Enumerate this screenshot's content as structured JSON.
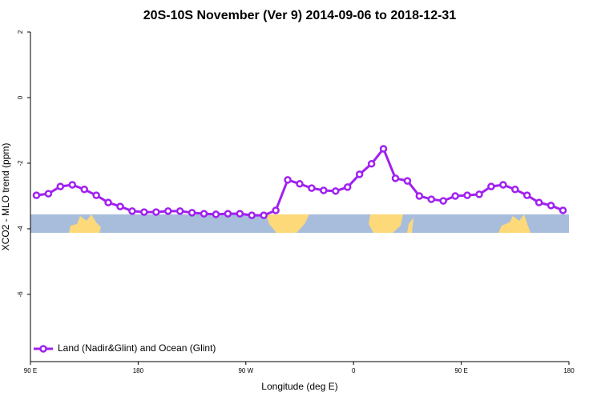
{
  "chart_data": {
    "type": "line",
    "title": "20S-10S November (Ver 9)   2014-09-06 to 2018-12-31",
    "x_label": "Longitude (deg E)",
    "y_label": "XCO2 - MLO trend (ppm)",
    "x": [
      95,
      105,
      115,
      125,
      135,
      145,
      155,
      165,
      175,
      185,
      195,
      205,
      215,
      225,
      235,
      245,
      255,
      265,
      275,
      285,
      295,
      305,
      315,
      325,
      335,
      345,
      355,
      365,
      375,
      385,
      395,
      405,
      415,
      425,
      435,
      445,
      455,
      465,
      475,
      485,
      495,
      505,
      515,
      525,
      535
    ],
    "series": [
      {
        "name": "Land (Nadir&Glint) and Ocean (Glint)",
        "color": "#a020f0",
        "values": [
          -2.98,
          -2.93,
          -2.71,
          -2.66,
          -2.8,
          -2.98,
          -3.2,
          -3.32,
          -3.46,
          -3.49,
          -3.49,
          -3.46,
          -3.46,
          -3.51,
          -3.54,
          -3.56,
          -3.54,
          -3.54,
          -3.59,
          -3.59,
          -3.44,
          -2.51,
          -2.63,
          -2.76,
          -2.83,
          -2.85,
          -2.73,
          -2.34,
          -2.02,
          -1.56,
          -2.46,
          -2.54,
          -3.0,
          -3.1,
          -3.15,
          -3.0,
          -2.98,
          -2.95,
          -2.71,
          -2.66,
          -2.8,
          -2.98,
          -3.2,
          -3.29,
          -3.44
        ]
      }
    ],
    "xlim": [
      90,
      540
    ],
    "xticks": [
      {
        "value": 90,
        "label": "90 E"
      },
      180,
      {
        "value": 270,
        "label": "90 W"
      },
      {
        "value": 360,
        "label": "0"
      },
      {
        "value": 450,
        "label": "90 E"
      },
      {
        "value": 540,
        "label": "180"
      }
    ],
    "ylim": [
      -8.05,
      2
    ],
    "yticks": [
      2,
      0,
      -2,
      -4,
      -6
    ],
    "legend": "bottom-left"
  }
}
